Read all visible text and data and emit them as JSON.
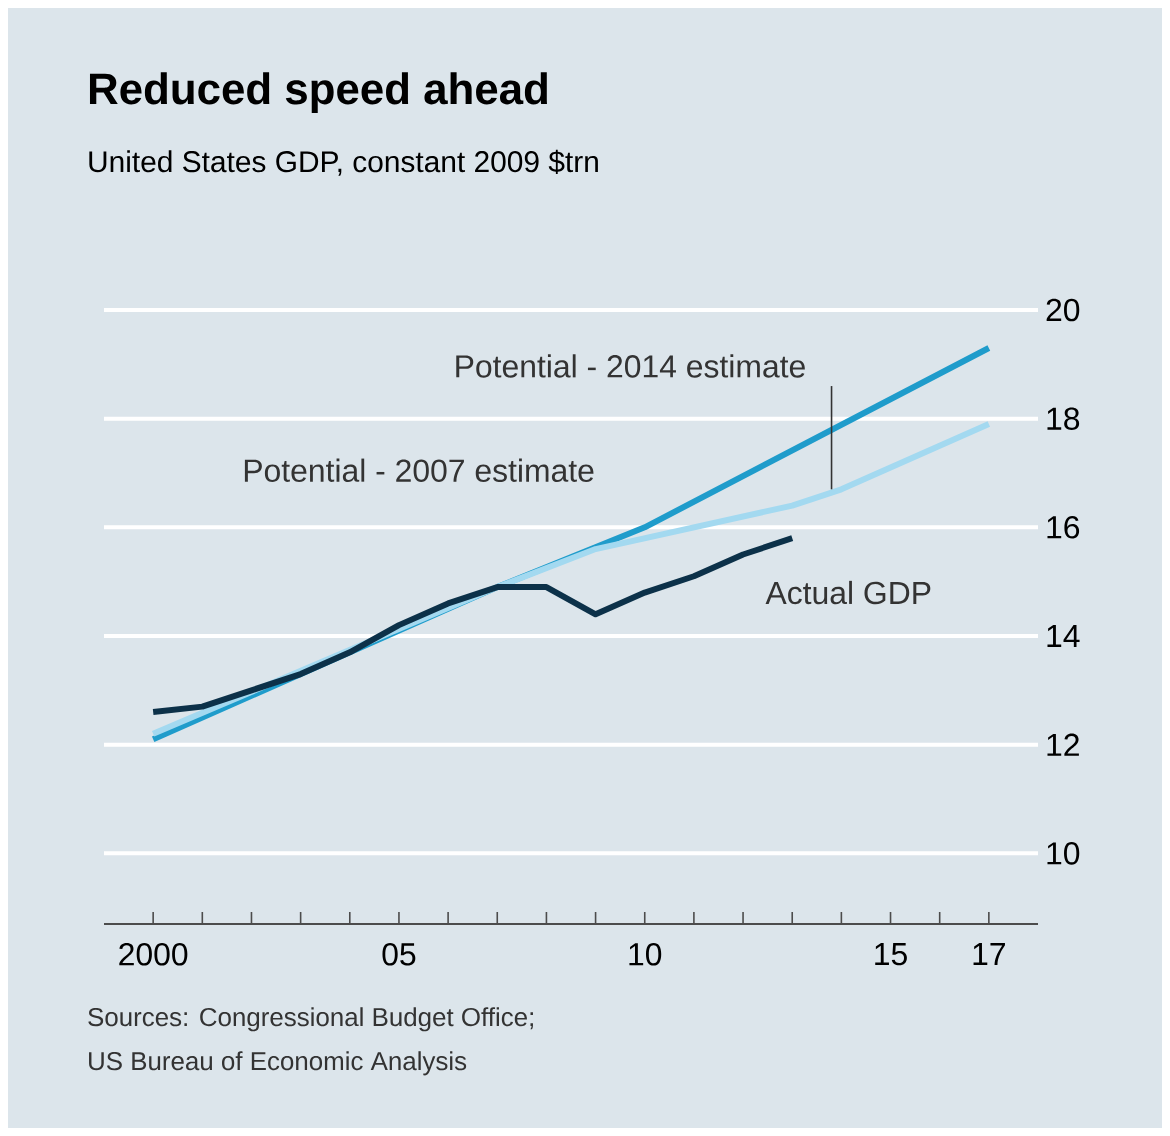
{
  "chart_data": {
    "type": "line",
    "title": "Reduced speed ahead",
    "subtitle": "United States GDP, constant 2009 $trn",
    "annotations": [
      "Sources: Congressional Budget Office;",
      "US Bureau of Economic Analysis"
    ],
    "xlim": [
      1999,
      2018
    ],
    "ylim": [
      8.7,
      20
    ],
    "xticks": [
      {
        "value": 2000,
        "label": "2000"
      },
      {
        "value": 2001,
        "label": null
      },
      {
        "value": 2002,
        "label": null
      },
      {
        "value": 2003,
        "label": null
      },
      {
        "value": 2004,
        "label": null
      },
      {
        "value": 2005,
        "label": "05"
      },
      {
        "value": 2006,
        "label": null
      },
      {
        "value": 2007,
        "label": null
      },
      {
        "value": 2008,
        "label": null
      },
      {
        "value": 2009,
        "label": null
      },
      {
        "value": 2010,
        "label": "10"
      },
      {
        "value": 2011,
        "label": null
      },
      {
        "value": 2012,
        "label": null
      },
      {
        "value": 2013,
        "label": null
      },
      {
        "value": 2014,
        "label": null
      },
      {
        "value": 2015,
        "label": "15"
      },
      {
        "value": 2016,
        "label": null
      },
      {
        "value": 2017,
        "label": "17"
      }
    ],
    "yticks": [
      10,
      12,
      14,
      16,
      18,
      20
    ],
    "grid": "y",
    "marker": "none",
    "line_style": "solid",
    "series": [
      {
        "name": "Potential - 2014 estimate",
        "color": "#1f9ccb",
        "x": [
          2000,
          2007,
          2010,
          2017
        ],
        "values": [
          12.1,
          14.9,
          16.0,
          19.3
        ]
      },
      {
        "name": "Potential - 2007 estimate",
        "color": "#a3d9f0",
        "x": [
          2000,
          2007,
          2009,
          2013,
          2014,
          2017
        ],
        "values": [
          12.2,
          14.9,
          15.6,
          16.4,
          16.7,
          17.9
        ]
      },
      {
        "name": "Actual GDP",
        "color": "#0c3149",
        "x": [
          2000,
          2001,
          2002,
          2003,
          2004,
          2005,
          2006,
          2007,
          2008,
          2009,
          2010,
          2011,
          2012,
          2013
        ],
        "values": [
          12.6,
          12.7,
          13.0,
          13.3,
          13.7,
          14.2,
          14.6,
          14.9,
          14.9,
          14.4,
          14.8,
          15.1,
          15.5,
          15.8
        ]
      },
      {
        "color": "#333333",
        "x": [
          2013.8,
          2013.8
        ],
        "values": [
          16.7,
          18.6
        ]
      }
    ]
  }
}
